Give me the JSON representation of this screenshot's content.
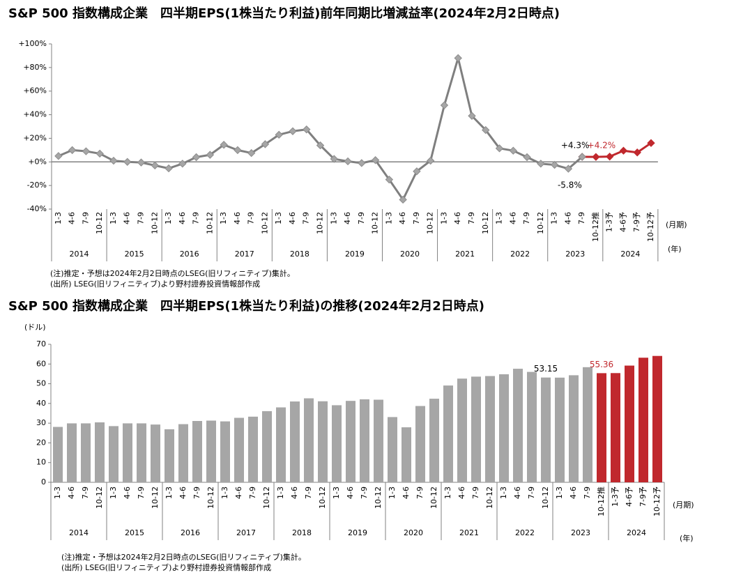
{
  "chart_data": [
    {
      "type": "line",
      "title": "S&P 500 指数構成企業　四半期EPS(1株当たり利益)前年同期比増減益率(2024年2月2日時点)",
      "categories": [
        "1-3",
        "4-6",
        "7-9",
        "10-12",
        "1-3",
        "4-6",
        "7-9",
        "10-12",
        "1-3",
        "4-6",
        "7-9",
        "10-12",
        "1-3",
        "4-6",
        "7-9",
        "10-12",
        "1-3",
        "4-6",
        "7-9",
        "10-12",
        "1-3",
        "4-6",
        "7-9",
        "10-12",
        "1-3",
        "4-6",
        "7-9",
        "10-12",
        "1-3",
        "4-6",
        "7-9",
        "10-12",
        "1-3",
        "4-6",
        "7-9",
        "10-12",
        "1-3",
        "4-6",
        "7-9",
        "10-12推",
        "1-3予",
        "4-6予",
        "7-9予",
        "10-12予"
      ],
      "years": [
        "2014",
        "2015",
        "2016",
        "2017",
        "2018",
        "2019",
        "2020",
        "2021",
        "2022",
        "2023",
        "2024"
      ],
      "x_unit": "(月期)",
      "group_unit": "(年)",
      "series": [
        {
          "color": "#c0282d",
          "values": [
            null,
            null,
            null,
            null,
            null,
            null,
            null,
            null,
            null,
            null,
            null,
            null,
            null,
            null,
            null,
            null,
            null,
            null,
            null,
            null,
            null,
            null,
            null,
            null,
            null,
            null,
            null,
            null,
            null,
            null,
            null,
            null,
            null,
            null,
            null,
            null,
            null,
            null,
            4.3,
            4.2,
            4.5,
            9.5,
            8,
            16
          ],
          "value_labels": [
            null,
            null,
            null,
            null,
            null,
            null,
            null,
            null,
            null,
            null,
            null,
            null,
            null,
            null,
            null,
            null,
            null,
            null,
            null,
            null,
            null,
            null,
            null,
            null,
            null,
            null,
            null,
            null,
            null,
            null,
            null,
            null,
            null,
            null,
            null,
            null,
            null,
            null,
            null,
            "+4.2%",
            null,
            null,
            null,
            null
          ]
        },
        {
          "color": "#7f7f7f",
          "values": [
            5,
            10,
            9,
            7,
            1,
            0,
            -0.5,
            -3,
            -5.5,
            -1.5,
            4,
            6,
            14.5,
            10,
            7.5,
            15,
            23,
            26,
            27.5,
            14,
            2.5,
            0.5,
            -1,
            1.5,
            -15,
            -32,
            -8,
            1,
            48,
            88,
            39,
            27,
            11.5,
            9.5,
            4,
            -1.5,
            -2.5,
            -5.8,
            4.3,
            null,
            null,
            null,
            null,
            null
          ],
          "value_labels": [
            null,
            null,
            null,
            null,
            null,
            null,
            null,
            null,
            null,
            null,
            null,
            null,
            null,
            null,
            null,
            null,
            null,
            null,
            null,
            null,
            null,
            null,
            null,
            null,
            null,
            null,
            null,
            null,
            null,
            null,
            null,
            null,
            null,
            null,
            null,
            null,
            null,
            "-5.8%",
            "+4.3%",
            null,
            null,
            null,
            null,
            null
          ]
        }
      ],
      "ylim": [
        -40,
        100
      ],
      "yticks": [
        {
          "value": -40,
          "label": "-40%"
        },
        {
          "value": -20,
          "label": "-20%"
        },
        {
          "value": 0,
          "label": "+0%"
        },
        {
          "value": 20,
          "label": "+20%"
        },
        {
          "value": 40,
          "label": "+40%"
        },
        {
          "value": 60,
          "label": "+60%"
        },
        {
          "value": 80,
          "label": "+80%"
        },
        {
          "value": 100,
          "label": "+100%"
        }
      ],
      "notes": [
        "(注)推定・予想は2024年2月2日時点のLSEG(旧リフィニティブ)集計。",
        "(出所) LSEG(旧リフィニティブ)より野村證券投資情報部作成"
      ]
    },
    {
      "type": "bar",
      "title": "S&P 500 指数構成企業　四半期EPS(1株当たり利益)の推移(2024年2月2日時点)",
      "categories": [
        "1-3",
        "4-6",
        "7-9",
        "10-12",
        "1-3",
        "4-6",
        "7-9",
        "10-12",
        "1-3",
        "4-6",
        "7-9",
        "10-12",
        "1-3",
        "4-6",
        "7-9",
        "10-12",
        "1-3",
        "4-6",
        "7-9",
        "10-12",
        "1-3",
        "4-6",
        "7-9",
        "10-12",
        "1-3",
        "4-6",
        "7-9",
        "10-12",
        "1-3",
        "4-6",
        "7-9",
        "10-12",
        "1-3",
        "4-6",
        "7-9",
        "10-12",
        "1-3",
        "4-6",
        "7-9",
        "10-12推",
        "1-3予",
        "4-6予",
        "7-9予",
        "10-12予"
      ],
      "years": [
        "2014",
        "2015",
        "2016",
        "2017",
        "2018",
        "2019",
        "2020",
        "2021",
        "2022",
        "2023",
        "2024"
      ],
      "x_unit": "(月期)",
      "group_unit": "(年)",
      "y_unit": "(ドル)",
      "series": [
        {
          "color": "#a6a6a6",
          "values": [
            28.1,
            29.9,
            29.9,
            30.4,
            28.5,
            29.9,
            29.9,
            29.3,
            26.9,
            29.5,
            31.1,
            31.3,
            30.9,
            32.7,
            33.3,
            36.1,
            38,
            41,
            42.6,
            41.1,
            39.1,
            41.3,
            42.1,
            41.9,
            33.1,
            27.9,
            38.7,
            42.4,
            49.1,
            52.6,
            53.6,
            53.9,
            54.8,
            57.6,
            56,
            53.15,
            53.1,
            54.3,
            58.4,
            null,
            null,
            null,
            null,
            null
          ],
          "value_labels": [
            null,
            null,
            null,
            null,
            null,
            null,
            null,
            null,
            null,
            null,
            null,
            null,
            null,
            null,
            null,
            null,
            null,
            null,
            null,
            null,
            null,
            null,
            null,
            null,
            null,
            null,
            null,
            null,
            null,
            null,
            null,
            null,
            null,
            null,
            null,
            "53.15",
            null,
            null,
            null,
            null,
            null,
            null,
            null,
            null
          ]
        },
        {
          "color": "#c0282d",
          "values": [
            null,
            null,
            null,
            null,
            null,
            null,
            null,
            null,
            null,
            null,
            null,
            null,
            null,
            null,
            null,
            null,
            null,
            null,
            null,
            null,
            null,
            null,
            null,
            null,
            null,
            null,
            null,
            null,
            null,
            null,
            null,
            null,
            null,
            null,
            null,
            null,
            null,
            null,
            null,
            55.36,
            55.4,
            59.2,
            63.2,
            64.1
          ],
          "value_labels": [
            null,
            null,
            null,
            null,
            null,
            null,
            null,
            null,
            null,
            null,
            null,
            null,
            null,
            null,
            null,
            null,
            null,
            null,
            null,
            null,
            null,
            null,
            null,
            null,
            null,
            null,
            null,
            null,
            null,
            null,
            null,
            null,
            null,
            null,
            null,
            null,
            null,
            null,
            null,
            "55.36",
            null,
            null,
            null,
            null
          ]
        }
      ],
      "ylim": [
        0,
        70
      ],
      "yticks": [
        0,
        10,
        20,
        30,
        40,
        50,
        60,
        70
      ],
      "notes": [
        "(注)推定・予想は2024年2月2日時点のLSEG(旧リフィニティブ)集計。",
        "(出所) LSEG(旧リフィニティブ)より野村證券投資情報部作成"
      ]
    }
  ]
}
